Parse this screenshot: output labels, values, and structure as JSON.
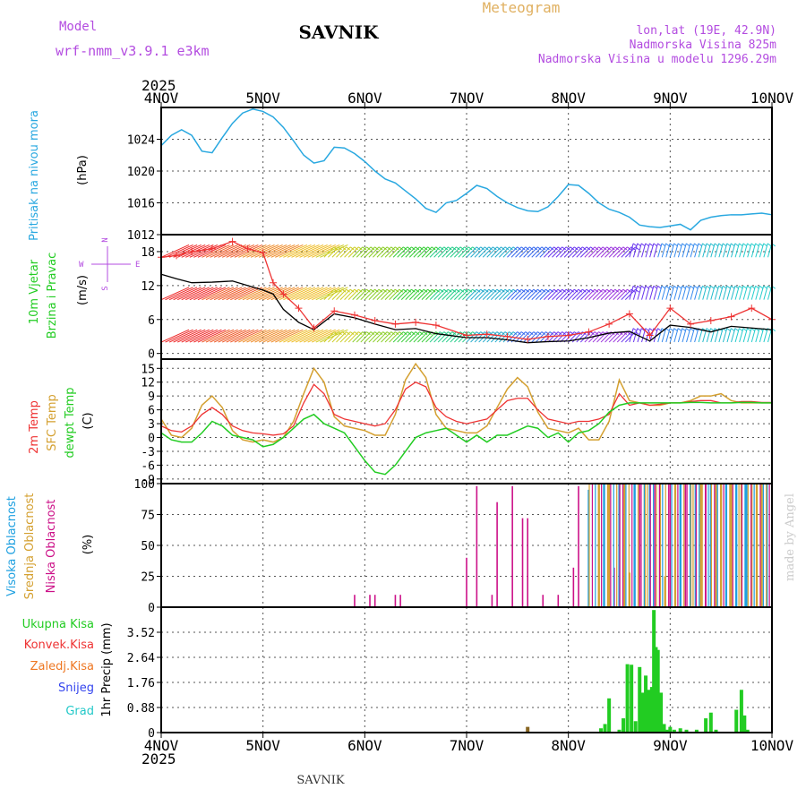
{
  "header": {
    "model_label": "Model",
    "model_name": "wrf-nmm_v3.9.1 e3km",
    "station": "SAVNIK",
    "chart_title": "Meteogram",
    "lonlat": "lon,lat (19E, 42.9N)",
    "elevation": "Nadmorska Visina 825m",
    "model_elevation": "Nadmorska Visina u modelu 1296.29m",
    "year": "2025",
    "footer_station": "SAVNIK",
    "credit": "made by Angel"
  },
  "colors": {
    "pressure": "#29a8e0",
    "wind_label": "#22cc22",
    "temp2m": "#ee3333",
    "sfc_temp": "#d4a030",
    "dewpt": "#22cc22",
    "cloud_high": "#1ea0e0",
    "cloud_mid": "#d4a030",
    "cloud_low": "#cc1188",
    "precip_total": "#22cc22",
    "precip_conv": "#ee3333",
    "precip_frz": "#ee7722",
    "precip_snow": "#3344ee",
    "precip_hail": "#22c8c8",
    "dir_label": "#b34ce0",
    "title": "#b34ce0",
    "meteogram": "#e0b060"
  },
  "chart_data": [
    {
      "type": "line",
      "panel": "pressure",
      "xlabel": "",
      "ylabel_left": "Pritisak na nivou mora",
      "ylabel_unit": "(hPa)",
      "x_ticks": [
        "4NOV",
        "5NOV",
        "6NOV",
        "7NOV",
        "8NOV",
        "9NOV",
        "10NOV"
      ],
      "x_range": [
        0,
        6
      ],
      "y_ticks": [
        "1012",
        "1016",
        "1020",
        "1024"
      ],
      "ylim": [
        1012,
        1028
      ],
      "series": [
        {
          "name": "MSLP",
          "x": [
            0,
            0.1,
            0.2,
            0.3,
            0.4,
            0.5,
            0.6,
            0.7,
            0.8,
            0.9,
            1.0,
            1.1,
            1.2,
            1.3,
            1.4,
            1.5,
            1.6,
            1.7,
            1.8,
            1.9,
            2.0,
            2.1,
            2.2,
            2.3,
            2.4,
            2.5,
            2.6,
            2.7,
            2.8,
            2.9,
            3.0,
            3.1,
            3.2,
            3.3,
            3.4,
            3.5,
            3.6,
            3.7,
            3.8,
            3.9,
            4.0,
            4.1,
            4.2,
            4.3,
            4.4,
            4.5,
            4.6,
            4.7,
            4.8,
            4.9,
            5.0,
            5.1,
            5.2,
            5.3,
            5.4,
            5.5,
            5.6,
            5.7,
            5.8,
            5.9,
            6.0
          ],
          "values": [
            1023.2,
            1024.5,
            1025.2,
            1024.5,
            1022.5,
            1022.3,
            1024.2,
            1026.0,
            1027.3,
            1027.8,
            1027.5,
            1026.8,
            1025.5,
            1023.8,
            1022.0,
            1021.0,
            1021.3,
            1023.0,
            1022.9,
            1022.2,
            1021.2,
            1020.0,
            1019.0,
            1018.5,
            1017.5,
            1016.5,
            1015.3,
            1014.8,
            1016.0,
            1016.3,
            1017.2,
            1018.2,
            1017.8,
            1016.8,
            1016.0,
            1015.4,
            1015.0,
            1014.9,
            1015.5,
            1016.8,
            1018.3,
            1018.2,
            1017.2,
            1016.0,
            1015.2,
            1014.8,
            1014.2,
            1013.2,
            1013.0,
            1012.9,
            1013.1,
            1013.3,
            1012.6,
            1013.8,
            1014.2,
            1014.4,
            1014.5,
            1014.5,
            1014.6,
            1014.7,
            1014.5
          ]
        }
      ]
    },
    {
      "type": "line",
      "panel": "wind",
      "ylabel_left": [
        "10m Vjetar",
        "Brzina i Pravac"
      ],
      "ylabel_unit": "(m/s)",
      "direction_legend": {
        "n": "N",
        "w": "W",
        "e": "E",
        "s": "S"
      },
      "y_ticks": [
        "0",
        "6",
        "12",
        "18"
      ],
      "ylim": [
        -1,
        21
      ],
      "barb_rows": [
        2,
        9.5,
        17
      ],
      "series": [
        {
          "name": "Wind speed",
          "x": [
            0,
            0.15,
            0.3,
            0.5,
            0.7,
            0.85,
            1.0,
            1.1,
            1.2,
            1.35,
            1.5,
            1.7,
            1.9,
            2.1,
            2.3,
            2.5,
            2.7,
            3.0,
            3.2,
            3.4,
            3.6,
            3.8,
            4.0,
            4.2,
            4.4,
            4.6,
            4.8,
            5.0,
            5.2,
            5.4,
            5.6,
            5.8,
            6.0
          ],
          "values": [
            14,
            13.2,
            12.5,
            12.6,
            12.8,
            12.0,
            11.2,
            10.5,
            7.8,
            5.5,
            4.2,
            7.0,
            6.3,
            5.2,
            4.2,
            4.4,
            3.5,
            2.8,
            2.8,
            2.4,
            1.9,
            2.1,
            2.2,
            2.8,
            3.6,
            3.9,
            2.2,
            5.0,
            4.6,
            3.8,
            4.8,
            4.5,
            4.2
          ]
        },
        {
          "name": "Wind gust",
          "x": [
            0,
            0.15,
            0.3,
            0.5,
            0.7,
            0.85,
            1.0,
            1.1,
            1.2,
            1.35,
            1.5,
            1.7,
            1.9,
            2.1,
            2.3,
            2.5,
            2.7,
            3.0,
            3.2,
            3.4,
            3.6,
            3.8,
            4.0,
            4.2,
            4.4,
            4.6,
            4.8,
            5.0,
            5.2,
            5.4,
            5.6,
            5.8,
            6.0
          ],
          "values": [
            17,
            17.3,
            18,
            18.5,
            19.8,
            18.5,
            17.8,
            12.5,
            10.5,
            8.0,
            4.5,
            7.5,
            6.8,
            5.8,
            5.2,
            5.5,
            5.0,
            3.2,
            3.4,
            3.0,
            2.5,
            3.0,
            3.2,
            3.8,
            5.2,
            7.0,
            3.2,
            8.0,
            5.2,
            5.8,
            6.5,
            8.0,
            6.0
          ]
        }
      ]
    },
    {
      "type": "line",
      "panel": "temperature",
      "ylabel_left": [
        "2m Temp",
        "SFC Temp",
        "dewpt Temp"
      ],
      "ylabel_unit": "(C)",
      "y_ticks": [
        "-9",
        "-6",
        "-3",
        "0",
        "3",
        "6",
        "9",
        "12",
        "15"
      ],
      "ylim": [
        -10,
        17
      ],
      "series": [
        {
          "name": "2m Temp",
          "x": [
            0,
            0.1,
            0.2,
            0.3,
            0.4,
            0.5,
            0.6,
            0.7,
            0.8,
            0.9,
            1.0,
            1.1,
            1.2,
            1.3,
            1.4,
            1.5,
            1.6,
            1.7,
            1.8,
            1.9,
            2.0,
            2.1,
            2.2,
            2.3,
            2.4,
            2.5,
            2.6,
            2.7,
            2.8,
            2.9,
            3.0,
            3.1,
            3.2,
            3.3,
            3.4,
            3.5,
            3.6,
            3.7,
            3.8,
            3.9,
            4.0,
            4.1,
            4.2,
            4.3,
            4.4,
            4.5,
            4.6,
            4.7,
            4.8,
            4.9,
            5.0,
            5.1,
            5.2,
            5.3,
            5.4,
            5.5,
            5.6,
            5.7,
            5.8,
            5.9,
            6.0
          ],
          "values": [
            2.5,
            1.5,
            1.2,
            2.5,
            5.0,
            6.5,
            5.0,
            2.5,
            1.5,
            1.0,
            0.8,
            0.5,
            0.8,
            2.5,
            7.5,
            11.5,
            9.5,
            5.0,
            4.0,
            3.5,
            3.0,
            2.5,
            3.0,
            6.0,
            10.5,
            12.0,
            11.0,
            6.5,
            4.5,
            3.5,
            3.0,
            3.5,
            4.0,
            6.0,
            8.0,
            8.5,
            8.5,
            6.0,
            4.0,
            3.5,
            3.0,
            3.5,
            3.5,
            4.0,
            5.0,
            9.5,
            7.0,
            7.5,
            7.0,
            7.2,
            7.5,
            7.5,
            7.8,
            8.0,
            8.0,
            7.5,
            7.5,
            7.8,
            7.8,
            7.6,
            7.6
          ]
        },
        {
          "name": "SFC Temp",
          "x": [
            0,
            0.1,
            0.2,
            0.3,
            0.4,
            0.5,
            0.6,
            0.7,
            0.8,
            0.9,
            1.0,
            1.1,
            1.2,
            1.3,
            1.4,
            1.5,
            1.6,
            1.7,
            1.8,
            1.9,
            2.0,
            2.1,
            2.2,
            2.3,
            2.4,
            2.5,
            2.6,
            2.7,
            2.8,
            2.9,
            3.0,
            3.1,
            3.2,
            3.3,
            3.4,
            3.5,
            3.6,
            3.7,
            3.8,
            3.9,
            4.0,
            4.1,
            4.2,
            4.3,
            4.4,
            4.5,
            4.6,
            4.7,
            4.8,
            4.9,
            5.0,
            5.1,
            5.2,
            5.3,
            5.4,
            5.5,
            5.6,
            5.7,
            5.8,
            5.9,
            6.0
          ],
          "values": [
            4.0,
            0.5,
            0.0,
            2.0,
            7.0,
            9.0,
            6.5,
            1.5,
            -0.5,
            -1.0,
            -0.5,
            -1.0,
            0.0,
            3.5,
            9.5,
            15.0,
            12.0,
            4.5,
            2.5,
            2.0,
            1.5,
            0.5,
            0.5,
            5.0,
            12.5,
            16.0,
            13.0,
            5.0,
            2.0,
            1.5,
            1.0,
            1.0,
            2.5,
            6.5,
            10.5,
            13.0,
            11.0,
            5.5,
            2.0,
            1.5,
            1.0,
            2.0,
            -0.5,
            -0.5,
            3.5,
            12.5,
            8.0,
            7.5,
            7.0,
            7.0,
            7.5,
            7.5,
            8.0,
            9.0,
            9.0,
            9.5,
            8.0,
            7.5,
            7.5,
            7.5,
            7.5
          ]
        },
        {
          "name": "dewpt Temp",
          "x": [
            0,
            0.1,
            0.2,
            0.3,
            0.4,
            0.5,
            0.6,
            0.7,
            0.8,
            0.9,
            1.0,
            1.1,
            1.2,
            1.3,
            1.4,
            1.5,
            1.6,
            1.7,
            1.8,
            1.9,
            2.0,
            2.1,
            2.2,
            2.3,
            2.4,
            2.5,
            2.6,
            2.7,
            2.8,
            2.9,
            3.0,
            3.1,
            3.2,
            3.3,
            3.4,
            3.5,
            3.6,
            3.7,
            3.8,
            3.9,
            4.0,
            4.1,
            4.2,
            4.3,
            4.4,
            4.5,
            4.6,
            4.7,
            4.8,
            4.9,
            5.0,
            5.1,
            5.2,
            5.3,
            5.4,
            5.5,
            5.6,
            5.7,
            5.8,
            5.9,
            6.0
          ],
          "values": [
            1.0,
            -0.5,
            -1.0,
            -1.0,
            1.0,
            3.5,
            2.5,
            0.5,
            0.0,
            -0.5,
            -2.0,
            -1.5,
            0.0,
            2.0,
            4.0,
            5.0,
            3.0,
            2.0,
            1.0,
            -2.0,
            -5.0,
            -7.5,
            -8.0,
            -6.0,
            -3.0,
            0.0,
            1.0,
            1.5,
            2.0,
            0.5,
            -1.0,
            0.5,
            -1.0,
            0.5,
            0.5,
            1.5,
            2.5,
            2.0,
            0.0,
            1.0,
            -1.0,
            1.0,
            1.5,
            3.0,
            5.5,
            7.0,
            7.5,
            7.5,
            7.5,
            7.5,
            7.5,
            7.5,
            7.6,
            7.6,
            7.5,
            7.5,
            7.5,
            7.6,
            7.6,
            7.5,
            7.5
          ]
        }
      ]
    },
    {
      "type": "bar",
      "panel": "cloud",
      "ylabel_left": [
        "Visoka Oblacnost",
        "Srednja Oblacnost",
        "Niska Oblacnost"
      ],
      "ylabel_unit": "(%)",
      "y_ticks": [
        "0",
        "25",
        "50",
        "75",
        "100"
      ],
      "ylim": [
        0,
        100
      ],
      "series": [
        {
          "name": "Niska Oblacnost",
          "x": [
            1.9,
            2.05,
            2.1,
            2.3,
            2.35,
            3.0,
            3.1,
            3.25,
            3.3,
            3.45,
            3.55,
            3.6,
            3.75,
            3.9,
            4.05,
            4.1,
            4.3,
            4.45,
            4.5,
            4.65,
            4.7,
            4.85,
            5.0,
            5.15,
            5.35,
            5.55,
            5.75,
            5.95
          ],
          "values": [
            10,
            10,
            10,
            10,
            10,
            40,
            98,
            10,
            85,
            98,
            72,
            72,
            10,
            10,
            32,
            98,
            98,
            32,
            85,
            100,
            100,
            100,
            100,
            100,
            100,
            100,
            100,
            100
          ]
        },
        {
          "name": "Srednja Oblacnost",
          "x": [
            4.3,
            4.4,
            4.55,
            4.6,
            4.75,
            4.9,
            4.95,
            5.05,
            5.2,
            5.3,
            5.45,
            5.5,
            5.6,
            5.7,
            5.8,
            5.85,
            5.9
          ],
          "values": [
            100,
            100,
            100,
            28,
            100,
            100,
            25,
            100,
            100,
            100,
            100,
            100,
            100,
            100,
            100,
            100,
            100
          ]
        },
        {
          "name": "Visoka Oblacnost",
          "x": [
            4.2,
            4.35,
            4.5,
            4.65,
            4.8,
            5.1,
            5.25,
            5.4,
            5.55,
            5.65,
            5.75,
            5.95
          ],
          "values": [
            95,
            100,
            100,
            100,
            100,
            100,
            100,
            100,
            100,
            100,
            100,
            100
          ]
        }
      ]
    },
    {
      "type": "bar",
      "panel": "precipitation",
      "ylabel_left": "1hr Precip (mm)",
      "legend": [
        "Ukupna Kisa",
        "Konvek.Kisa",
        "Zaledj.Kisa",
        "Snijeg",
        "Grad"
      ],
      "x_ticks": [
        "4NOV",
        "5NOV",
        "6NOV",
        "7NOV",
        "8NOV",
        "9NOV",
        "10NOV"
      ],
      "year": "2025",
      "y_ticks": [
        "0",
        "0.88",
        "1.76",
        "2.64",
        "3.52"
      ],
      "ylim": [
        0,
        4.4
      ],
      "series": [
        {
          "name": "Ukupna Kisa",
          "x": [
            4.32,
            4.36,
            4.4,
            4.5,
            4.54,
            4.58,
            4.62,
            4.66,
            4.7,
            4.73,
            4.76,
            4.79,
            4.82,
            4.84,
            4.86,
            4.88,
            4.91,
            4.94,
            4.97,
            5.0,
            5.04,
            5.1,
            5.16,
            5.26,
            5.35,
            5.4,
            5.45,
            5.65,
            5.7,
            5.73,
            5.76,
            5.8
          ],
          "values": [
            0.15,
            0.3,
            1.2,
            0.1,
            0.5,
            2.4,
            2.38,
            0.4,
            2.3,
            1.4,
            2.0,
            1.5,
            1.6,
            4.3,
            3.0,
            2.9,
            1.4,
            0.3,
            0.1,
            0.2,
            0.1,
            0.15,
            0.1,
            0.1,
            0.5,
            0.7,
            0.1,
            0.8,
            1.5,
            0.6,
            0.1,
            0.0
          ]
        },
        {
          "name": "Konvek.Kisa",
          "x": [
            3.6
          ],
          "values": [
            0.2
          ]
        }
      ]
    }
  ]
}
